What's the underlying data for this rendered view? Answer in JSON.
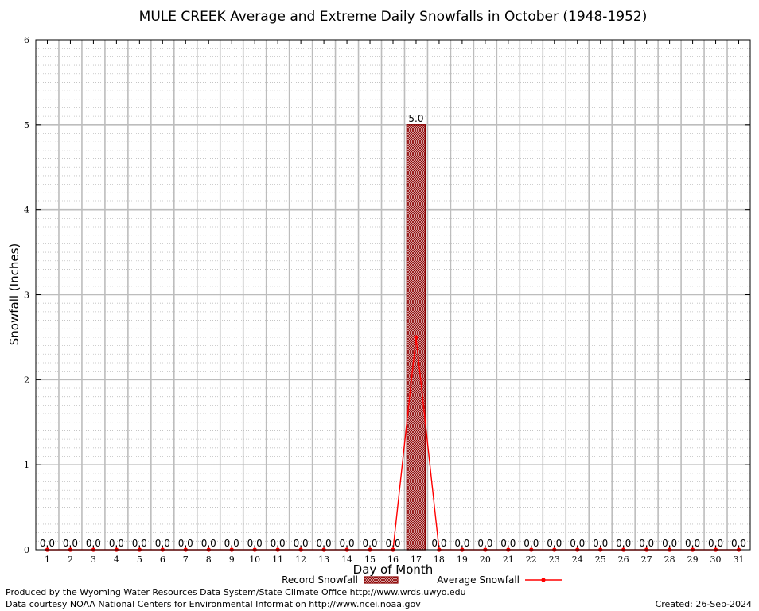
{
  "chart_data": {
    "type": "bar",
    "title": "MULE CREEK Average and Extreme Daily Snowfalls in October (1948-1952)",
    "xlabel": "Day of Month",
    "ylabel": "Snowfall (Inches)",
    "ylim": [
      0,
      6
    ],
    "yticks": [
      "0",
      "1",
      "2",
      "3",
      "4",
      "5",
      "6"
    ],
    "grid": true,
    "legend_position": "bottom",
    "categories": [
      "1",
      "2",
      "3",
      "4",
      "5",
      "6",
      "7",
      "8",
      "9",
      "10",
      "11",
      "12",
      "13",
      "14",
      "15",
      "16",
      "17",
      "18",
      "19",
      "20",
      "21",
      "22",
      "23",
      "24",
      "25",
      "26",
      "27",
      "28",
      "29",
      "30",
      "31"
    ],
    "series": [
      {
        "name": "Record Snowfall",
        "kind": "bar",
        "color": "#8b0000",
        "values": [
          0,
          0,
          0,
          0,
          0,
          0,
          0,
          0,
          0,
          0,
          0,
          0,
          0,
          0,
          0,
          0,
          5.0,
          0,
          0,
          0,
          0,
          0,
          0,
          0,
          0,
          0,
          0,
          0,
          0,
          0,
          0
        ],
        "labels": [
          "0.0",
          "0.0",
          "0.0",
          "0.0",
          "0.0",
          "0.0",
          "0.0",
          "0.0",
          "0.0",
          "0.0",
          "0.0",
          "0.0",
          "0.0",
          "0.0",
          "0.0",
          "0.0",
          "5.0",
          "0.0",
          "0.0",
          "0.0",
          "0.0",
          "0.0",
          "0.0",
          "0.0",
          "0.0",
          "0.0",
          "0.0",
          "0.0",
          "0.0",
          "0.0",
          "0.0"
        ]
      },
      {
        "name": "Average Snowfall",
        "kind": "line",
        "color": "#ff0000",
        "values": [
          0,
          0,
          0,
          0,
          0,
          0,
          0,
          0,
          0,
          0,
          0,
          0,
          0,
          0,
          0,
          0,
          2.5,
          0,
          0,
          0,
          0,
          0,
          0,
          0,
          0,
          0,
          0,
          0,
          0,
          0,
          0
        ]
      }
    ]
  },
  "footer": {
    "produced_by": "Produced by the Wyoming Water Resources Data System/State Climate Office http://www.wrds.uwyo.edu",
    "courtesy": "Data courtesy NOAA National Centers for Environmental Information http://www.ncei.noaa.gov",
    "created": "Created:  26-Sep-2024"
  }
}
